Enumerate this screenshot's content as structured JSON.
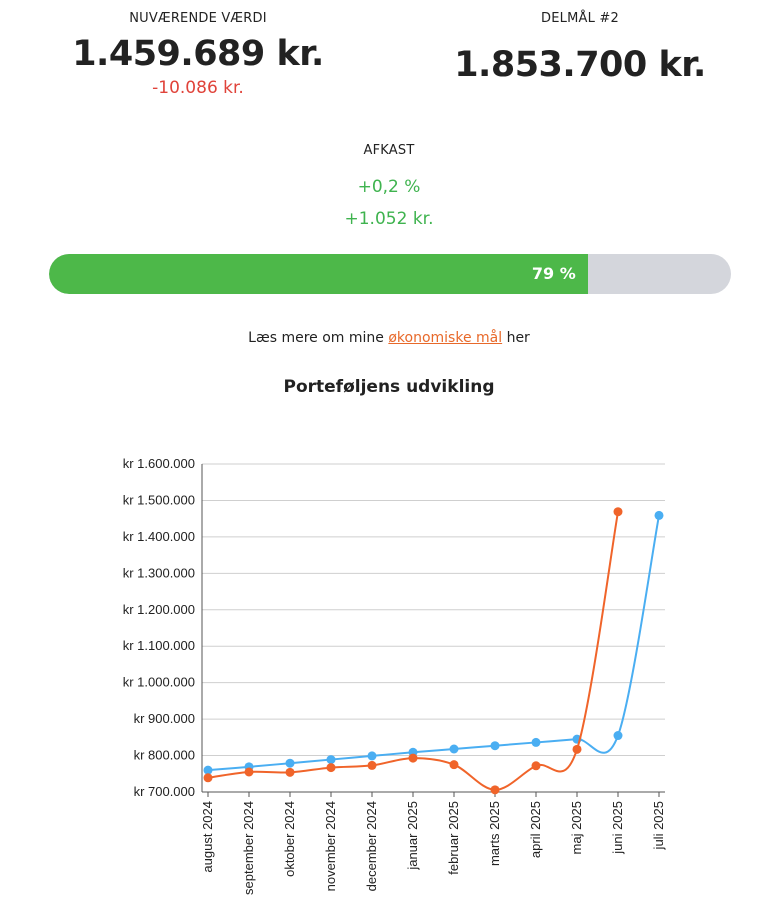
{
  "current": {
    "label": "NUVÆRENDE VÆRDI",
    "value": "1.459.689 kr.",
    "delta": "-10.086 kr."
  },
  "goal": {
    "label": "DELMÅL #2",
    "value": "1.853.700 kr."
  },
  "return": {
    "label": "AFKAST",
    "percent": "+0,2 %",
    "amount": "+1.052 kr."
  },
  "progress": {
    "percent": 79,
    "label": "79 %",
    "fill_color": "#4db849",
    "track_color": "#d4d6dc"
  },
  "readmore": {
    "before": "Læs mere om mine ",
    "link": "økonomiske mål",
    "after": " her"
  },
  "chart_title": "Porteføljens udvikling",
  "colors": {
    "blue": "#4aaef2",
    "orange": "#f0642a",
    "positive": "#3fb34f",
    "negative": "#e0433a"
  },
  "chart_data": {
    "type": "line",
    "categories": [
      "august 2024",
      "september 2024",
      "oktober 2024",
      "november 2024",
      "december 2024",
      "januar 2025",
      "februar 2025",
      "marts 2025",
      "april 2025",
      "maj 2025",
      "juni 2025",
      "juli 2025"
    ],
    "ylim": [
      700000,
      1600000
    ],
    "yticks": [
      700000,
      800000,
      900000,
      1000000,
      1100000,
      1200000,
      1300000,
      1400000,
      1500000,
      1600000
    ],
    "ytick_labels": [
      "kr 700.000",
      "kr 800.000",
      "kr 900.000",
      "kr 1.000.000",
      "kr 1.100.000",
      "kr 1.200.000",
      "kr 1.300.000",
      "kr 1.400.000",
      "kr 1.500.000",
      "kr 1.600.000"
    ],
    "grid": true,
    "series": [
      {
        "color": "#4aaef2",
        "values": [
          760000,
          769000,
          779000,
          789000,
          799000,
          809000,
          818000,
          827000,
          836000,
          845000,
          855000,
          1459000
        ]
      },
      {
        "color": "#f0642a",
        "values": [
          739000,
          755000,
          754000,
          767000,
          773000,
          793000,
          775000,
          706000,
          772000,
          817000,
          1469000,
          null
        ]
      }
    ]
  }
}
